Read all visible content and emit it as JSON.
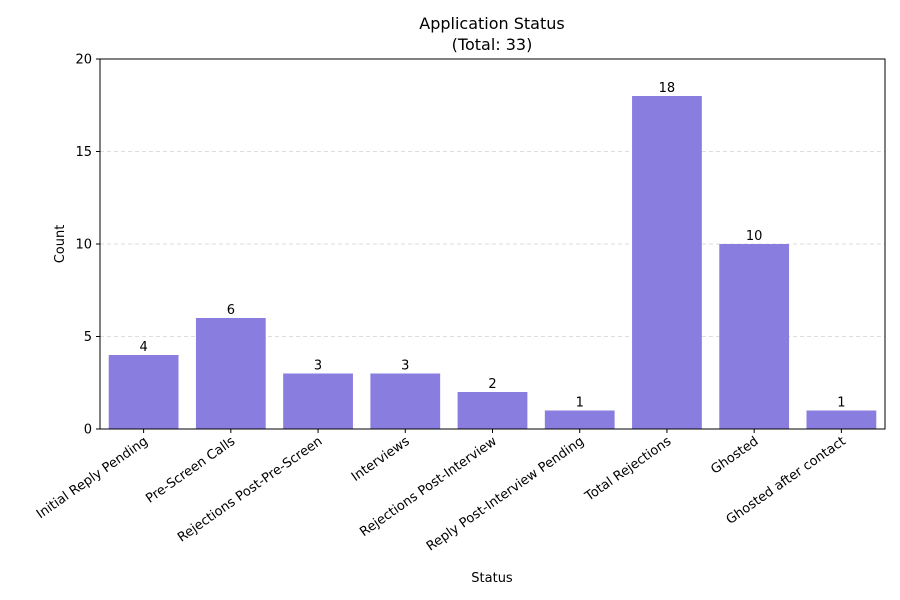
{
  "chart_data": {
    "type": "bar",
    "title": "Application Status",
    "subtitle": "(Total: 33)",
    "xlabel": "Status",
    "ylabel": "Count",
    "categories": [
      "Initial Reply Pending",
      "Pre-Screen Calls",
      "Rejections Post-Pre-Screen",
      "Interviews",
      "Rejections Post-Interview",
      "Reply Post-Interview Pending",
      "Total Rejections",
      "Ghosted",
      "Ghosted after contact"
    ],
    "values": [
      4,
      6,
      3,
      3,
      2,
      1,
      18,
      10,
      1
    ],
    "ylim": [
      0,
      20
    ],
    "yticks": [
      0,
      5,
      10,
      15,
      20
    ],
    "grid": "y-dashed",
    "bar_color": "#8a7de0"
  }
}
